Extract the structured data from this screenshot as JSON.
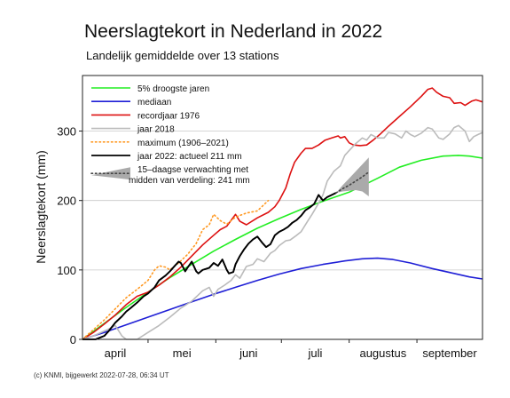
{
  "chart_data": {
    "type": "line",
    "title": "Neerslagtekort in Nederland in 2022",
    "subtitle": "Landelijk gemiddelde over 13 stations",
    "ylabel": "Neerslagtekort (mm)",
    "xlabel": "",
    "ylim": [
      0,
      380
    ],
    "xlim": [
      0,
      183
    ],
    "yticks": [
      0,
      100,
      200,
      300
    ],
    "grid": true,
    "legend_position": "top-left",
    "footer": "(c) KNMI, bijgewerkt 2022-07-28, 06:34 UT",
    "month_labels": [
      {
        "label": "april",
        "x": 15
      },
      {
        "label": "mei",
        "x": 45.5
      },
      {
        "label": "juni",
        "x": 76
      },
      {
        "label": "juli",
        "x": 106.5
      },
      {
        "label": "augustus",
        "x": 137.5
      },
      {
        "label": "september",
        "x": 168
      }
    ],
    "month_boundaries": [
      30,
      61,
      91,
      122,
      153
    ],
    "series": [
      {
        "key": "p5",
        "name": "5% droogste jaren",
        "color": "#22ee22",
        "style": "solid",
        "width": 1.6,
        "points": [
          [
            0,
            0
          ],
          [
            10,
            23
          ],
          [
            20,
            46
          ],
          [
            30,
            68
          ],
          [
            40,
            89
          ],
          [
            50,
            108
          ],
          [
            60,
            127
          ],
          [
            70,
            144
          ],
          [
            80,
            160
          ],
          [
            90,
            174
          ],
          [
            100,
            187
          ],
          [
            110,
            199
          ],
          [
            122,
            212
          ],
          [
            135,
            232
          ],
          [
            145,
            248
          ],
          [
            155,
            258
          ],
          [
            165,
            264
          ],
          [
            172,
            265
          ],
          [
            177,
            264
          ],
          [
            183,
            261
          ]
        ]
      },
      {
        "key": "median",
        "name": "mediaan",
        "color": "#1f1fd6",
        "style": "solid",
        "width": 1.6,
        "points": [
          [
            0,
            0
          ],
          [
            10,
            10
          ],
          [
            20,
            21
          ],
          [
            30,
            32
          ],
          [
            40,
            43
          ],
          [
            50,
            54
          ],
          [
            60,
            65
          ],
          [
            70,
            75
          ],
          [
            80,
            85
          ],
          [
            90,
            94
          ],
          [
            100,
            102
          ],
          [
            110,
            108
          ],
          [
            120,
            113
          ],
          [
            128,
            116
          ],
          [
            135,
            117
          ],
          [
            142,
            115
          ],
          [
            150,
            110
          ],
          [
            160,
            102
          ],
          [
            170,
            95
          ],
          [
            177,
            90
          ],
          [
            183,
            87
          ]
        ]
      },
      {
        "key": "r1976",
        "name": "recordjaar 1976",
        "color": "#dd1111",
        "style": "solid",
        "width": 1.6,
        "points": [
          [
            0,
            0
          ],
          [
            5,
            10
          ],
          [
            10,
            22
          ],
          [
            15,
            35
          ],
          [
            20,
            50
          ],
          [
            25,
            62
          ],
          [
            30,
            68
          ],
          [
            35,
            78
          ],
          [
            40,
            90
          ],
          [
            45,
            104
          ],
          [
            50,
            120
          ],
          [
            55,
            136
          ],
          [
            60,
            150
          ],
          [
            63,
            158
          ],
          [
            66,
            163
          ],
          [
            70,
            180
          ],
          [
            72,
            170
          ],
          [
            75,
            165
          ],
          [
            80,
            175
          ],
          [
            85,
            183
          ],
          [
            88,
            191
          ],
          [
            90,
            200
          ],
          [
            93,
            218
          ],
          [
            95,
            238
          ],
          [
            97,
            255
          ],
          [
            100,
            268
          ],
          [
            102,
            275
          ],
          [
            105,
            275
          ],
          [
            108,
            280
          ],
          [
            111,
            287
          ],
          [
            114,
            290
          ],
          [
            117,
            293
          ],
          [
            118,
            290
          ],
          [
            120,
            292
          ],
          [
            122,
            283
          ],
          [
            124,
            280
          ],
          [
            127,
            279
          ],
          [
            130,
            280
          ],
          [
            133,
            287
          ],
          [
            136,
            295
          ],
          [
            140,
            307
          ],
          [
            145,
            321
          ],
          [
            150,
            335
          ],
          [
            155,
            350
          ],
          [
            158,
            360
          ],
          [
            160,
            362
          ],
          [
            162,
            356
          ],
          [
            165,
            350
          ],
          [
            168,
            348
          ],
          [
            170,
            340
          ],
          [
            173,
            341
          ],
          [
            175,
            337
          ],
          [
            178,
            343
          ],
          [
            180,
            345
          ],
          [
            183,
            342
          ]
        ]
      },
      {
        "key": "y2018",
        "name": "jaar 2018",
        "color": "#bbbbbb",
        "style": "solid",
        "width": 1.6,
        "points": [
          [
            0,
            0
          ],
          [
            5,
            5
          ],
          [
            10,
            12
          ],
          [
            12,
            15
          ],
          [
            15,
            20
          ],
          [
            18,
            5
          ],
          [
            20,
            -5
          ],
          [
            25,
            -2
          ],
          [
            30,
            10
          ],
          [
            35,
            20
          ],
          [
            40,
            32
          ],
          [
            45,
            45
          ],
          [
            50,
            55
          ],
          [
            55,
            70
          ],
          [
            58,
            75
          ],
          [
            60,
            62
          ],
          [
            62,
            72
          ],
          [
            65,
            78
          ],
          [
            68,
            85
          ],
          [
            70,
            93
          ],
          [
            72,
            88
          ],
          [
            75,
            105
          ],
          [
            78,
            108
          ],
          [
            80,
            116
          ],
          [
            83,
            112
          ],
          [
            86,
            124
          ],
          [
            88,
            128
          ],
          [
            90,
            135
          ],
          [
            93,
            142
          ],
          [
            95,
            143
          ],
          [
            98,
            150
          ],
          [
            100,
            155
          ],
          [
            103,
            170
          ],
          [
            105,
            180
          ],
          [
            108,
            196
          ],
          [
            110,
            208
          ],
          [
            112,
            228
          ],
          [
            115,
            242
          ],
          [
            118,
            250
          ],
          [
            120,
            265
          ],
          [
            122,
            272
          ],
          [
            125,
            282
          ],
          [
            128,
            290
          ],
          [
            130,
            287
          ],
          [
            132,
            295
          ],
          [
            135,
            290
          ],
          [
            138,
            290
          ],
          [
            140,
            298
          ],
          [
            143,
            296
          ],
          [
            146,
            290
          ],
          [
            148,
            300
          ],
          [
            150,
            295
          ],
          [
            152,
            292
          ],
          [
            155,
            297
          ],
          [
            158,
            305
          ],
          [
            160,
            303
          ],
          [
            163,
            290
          ],
          [
            165,
            288
          ],
          [
            168,
            296
          ],
          [
            170,
            305
          ],
          [
            172,
            308
          ],
          [
            175,
            300
          ],
          [
            177,
            285
          ],
          [
            179,
            292
          ],
          [
            181,
            295
          ],
          [
            183,
            298
          ]
        ]
      },
      {
        "key": "max",
        "name": "maximum (1906–2021)",
        "color": "#ff9922",
        "style": "dotted",
        "width": 1.6,
        "points": [
          [
            0,
            0
          ],
          [
            5,
            14
          ],
          [
            10,
            28
          ],
          [
            15,
            44
          ],
          [
            20,
            60
          ],
          [
            25,
            72
          ],
          [
            30,
            85
          ],
          [
            33,
            100
          ],
          [
            35,
            106
          ],
          [
            38,
            104
          ],
          [
            40,
            100
          ],
          [
            44,
            110
          ],
          [
            48,
            122
          ],
          [
            52,
            138
          ],
          [
            55,
            158
          ],
          [
            58,
            165
          ],
          [
            60,
            180
          ],
          [
            63,
            171
          ],
          [
            66,
            166
          ],
          [
            70,
            176
          ],
          [
            75,
            182
          ],
          [
            80,
            185
          ],
          [
            85,
            200
          ]
        ]
      },
      {
        "key": "y2022",
        "name": "jaar 2022: actueel 211 mm",
        "color": "#000000",
        "style": "solid",
        "width": 1.8,
        "points": [
          [
            0,
            0
          ],
          [
            3,
            -2
          ],
          [
            6,
            0
          ],
          [
            10,
            5
          ],
          [
            12,
            12
          ],
          [
            15,
            24
          ],
          [
            18,
            33
          ],
          [
            20,
            40
          ],
          [
            22,
            45
          ],
          [
            25,
            53
          ],
          [
            28,
            62
          ],
          [
            30,
            66
          ],
          [
            33,
            75
          ],
          [
            35,
            85
          ],
          [
            38,
            92
          ],
          [
            40,
            98
          ],
          [
            42,
            105
          ],
          [
            44,
            112
          ],
          [
            45,
            110
          ],
          [
            47,
            98
          ],
          [
            48,
            103
          ],
          [
            50,
            112
          ],
          [
            52,
            98
          ],
          [
            53,
            95
          ],
          [
            55,
            100
          ],
          [
            58,
            103
          ],
          [
            60,
            110
          ],
          [
            62,
            106
          ],
          [
            64,
            115
          ],
          [
            66,
            100
          ],
          [
            67,
            95
          ],
          [
            69,
            97
          ],
          [
            70,
            108
          ],
          [
            72,
            120
          ],
          [
            74,
            130
          ],
          [
            76,
            138
          ],
          [
            78,
            144
          ],
          [
            80,
            148
          ],
          [
            82,
            140
          ],
          [
            84,
            133
          ],
          [
            86,
            137
          ],
          [
            88,
            150
          ],
          [
            90,
            155
          ],
          [
            92,
            158
          ],
          [
            94,
            162
          ],
          [
            96,
            168
          ],
          [
            98,
            172
          ],
          [
            100,
            178
          ],
          [
            102,
            186
          ],
          [
            104,
            190
          ],
          [
            106,
            195
          ],
          [
            108,
            208
          ],
          [
            110,
            200
          ],
          [
            112,
            205
          ],
          [
            114,
            208
          ],
          [
            116,
            211
          ]
        ]
      }
    ],
    "forecast": {
      "name": "15-daagse verwachting met midden van verdeling: 241 mm",
      "color": "#444444",
      "band_color": "#aaaaaa",
      "median": [
        [
          116,
          211
        ],
        [
          119,
          217
        ],
        [
          122,
          222
        ],
        [
          125,
          228
        ],
        [
          128,
          234
        ],
        [
          131,
          241
        ]
      ],
      "upper": [
        [
          116,
          211
        ],
        [
          119,
          222
        ],
        [
          122,
          232
        ],
        [
          125,
          242
        ],
        [
          128,
          252
        ],
        [
          131,
          262
        ]
      ],
      "lower": [
        [
          116,
          211
        ],
        [
          119,
          213
        ],
        [
          122,
          214
        ],
        [
          125,
          215
        ],
        [
          128,
          213
        ],
        [
          131,
          206
        ]
      ]
    },
    "legend": {
      "entries": [
        {
          "series": "p5",
          "label": "5% droogste jaren"
        },
        {
          "series": "median",
          "label": "mediaan"
        },
        {
          "series": "r1976",
          "label": "recordjaar 1976"
        },
        {
          "series": "y2018",
          "label": "jaar 2018"
        },
        {
          "series": "max",
          "label": "maximum (1906–2021)"
        },
        {
          "series": "y2022",
          "label": "jaar 2022: actueel 211 mm"
        }
      ],
      "forecast_line1": "15–daagse verwachting met",
      "forecast_line2": "midden van verdeling: 241 mm"
    }
  }
}
